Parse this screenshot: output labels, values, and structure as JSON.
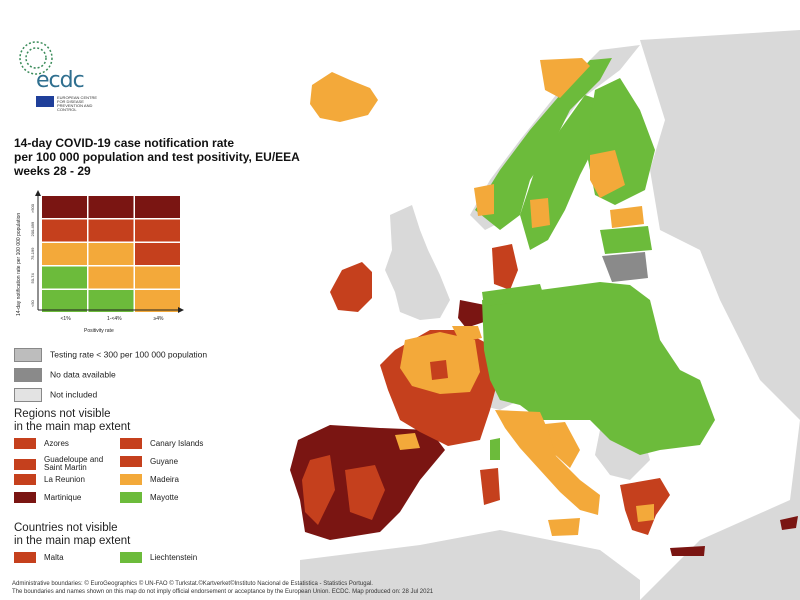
{
  "title_lines": [
    "14-day COVID-19 case notification rate",
    "per 100 000 population and test positivity, EU/EEA",
    "weeks 28 - 29"
  ],
  "logo": {
    "text": "ecdc",
    "agency": "EUROPEAN CENTRE FOR DISEASE PREVENTION AND CONTROL"
  },
  "colors": {
    "dark_red": "#7a1512",
    "red": "#c5401d",
    "orange": "#f3a93a",
    "green": "#6cbb3b",
    "light_grey": "#bdbdbd",
    "dark_grey": "#8a8a8a",
    "not_included": "#e3e3e3",
    "sea": "#ffffff",
    "land_out": "#d9d9d9"
  },
  "matrix": {
    "y_axis_label": "14-day notification rate per 100 000 population",
    "x_axis_label": "Positivity rate",
    "row_labels": [
      ">500",
      "200-499",
      "75-199",
      "50-74",
      "<50"
    ],
    "col_labels": [
      "<1%",
      "1-<4%",
      "≥4%"
    ],
    "cells": [
      [
        "dark_red",
        "dark_red",
        "dark_red"
      ],
      [
        "red",
        "red",
        "red"
      ],
      [
        "orange",
        "orange",
        "red"
      ],
      [
        "green",
        "orange",
        "orange"
      ],
      [
        "green",
        "green",
        "orange"
      ]
    ]
  },
  "legend": {
    "testing_rate": "Testing rate < 300 per 100 000 population",
    "no_data": "No data available",
    "not_included": "Not included"
  },
  "regions_heading": [
    "Regions not visible",
    "in the main map extent"
  ],
  "regions": [
    {
      "name": "Azores",
      "color": "red"
    },
    {
      "name": "Canary Islands",
      "color": "red"
    },
    {
      "name": "Guadeloupe and Saint Martin",
      "color": "red"
    },
    {
      "name": "Guyane",
      "color": "red"
    },
    {
      "name": "La Reunion",
      "color": "red"
    },
    {
      "name": "Madeira",
      "color": "orange"
    },
    {
      "name": "Martinique",
      "color": "dark_red"
    },
    {
      "name": "Mayotte",
      "color": "green"
    }
  ],
  "countries_heading": [
    "Countries not visible",
    "in the main map extent"
  ],
  "countries": [
    {
      "name": "Malta",
      "color": "red"
    },
    {
      "name": "Liechtenstein",
      "color": "green"
    }
  ],
  "footer_lines": [
    "Administrative boundaries: © EuroGeographics © UN-FAO © Turkstat.©Kartverket©Instituto Nacional de Estatistica - Statistics Portugal.",
    "The boundaries and names shown on this map do not imply official endorsement or acceptance by the European Union. ECDC. Map produced on: 28 Jul 2021"
  ]
}
